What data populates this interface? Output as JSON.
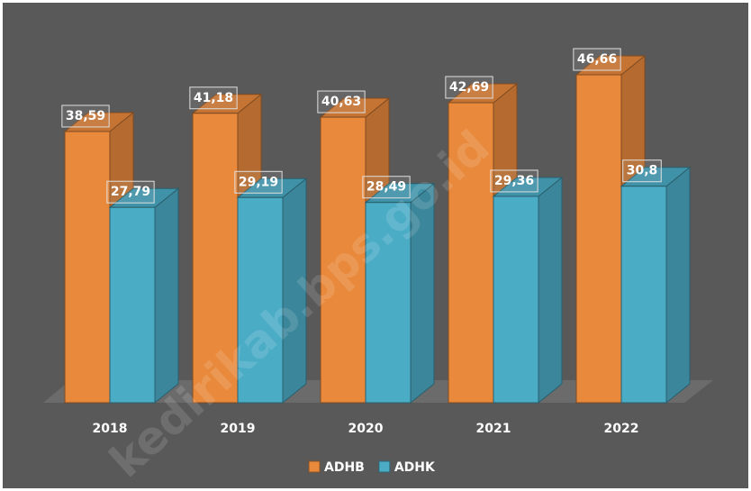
{
  "chart_data": {
    "type": "bar3d",
    "categories": [
      "2018",
      "2019",
      "2020",
      "2021",
      "2022"
    ],
    "series": [
      {
        "name": "ADHB",
        "color": "#e8893c",
        "values": [
          38.59,
          41.18,
          40.63,
          42.69,
          46.66
        ],
        "value_labels": [
          "38,59",
          "41,18",
          "40,63",
          "42,69",
          "46,66"
        ]
      },
      {
        "name": "ADHK",
        "color": "#4bacc6",
        "values": [
          27.79,
          29.19,
          28.49,
          29.36,
          30.8
        ],
        "value_labels": [
          "27,79",
          "29,19",
          "28,49",
          "29,36",
          "30,8"
        ]
      }
    ],
    "legend": "bottom",
    "watermark": "kedirikab.bps.go.id"
  }
}
